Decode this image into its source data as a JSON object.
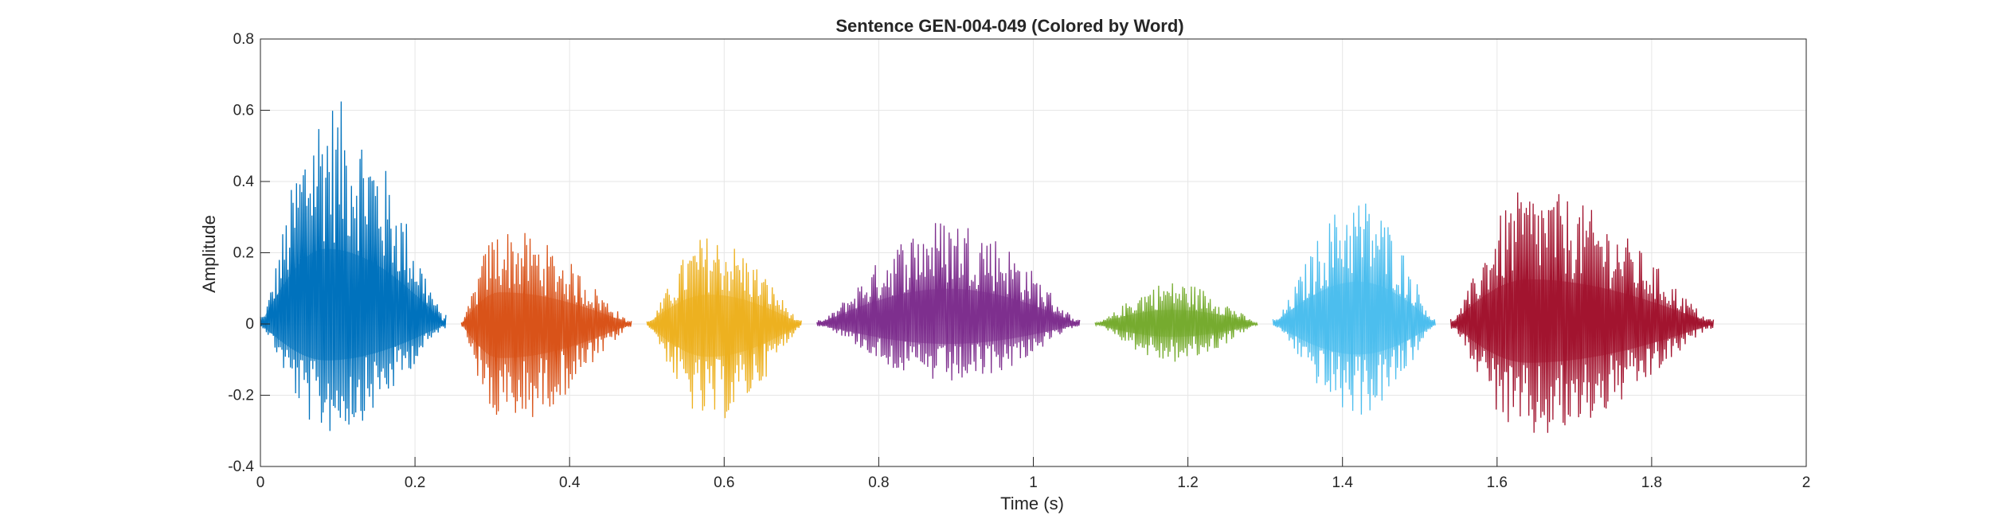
{
  "chart_data": {
    "type": "line",
    "title": "Sentence GEN-004-049 (Colored by Word)",
    "xlabel": "Time (s)",
    "ylabel": "Amplitude",
    "xlim": [
      0,
      2
    ],
    "ylim": [
      -0.4,
      0.8
    ],
    "x_ticks": [
      0,
      0.2,
      0.4,
      0.6,
      0.8,
      1,
      1.2,
      1.4,
      1.6,
      1.8,
      2
    ],
    "x_tick_labels": [
      "0",
      "0.2",
      "0.4",
      "0.6",
      "0.8",
      "1",
      "1.2",
      "1.4",
      "1.6",
      "1.8",
      "2"
    ],
    "y_ticks": [
      -0.4,
      -0.2,
      0,
      0.2,
      0.4,
      0.6,
      0.8
    ],
    "y_tick_labels": [
      "-0.4",
      "-0.2",
      "0",
      "0.2",
      "0.4",
      "0.6",
      "0.8"
    ],
    "grid": true,
    "legend": "none",
    "segments": [
      {
        "start": 0.0,
        "end": 0.24,
        "peak_time": 0.085,
        "max": 0.64,
        "min": -0.31,
        "color": "#0072BD"
      },
      {
        "start": 0.26,
        "end": 0.48,
        "peak_time": 0.31,
        "max": 0.27,
        "min": -0.29,
        "color": "#D95319"
      },
      {
        "start": 0.5,
        "end": 0.7,
        "peak_time": 0.58,
        "max": 0.25,
        "min": -0.28,
        "color": "#EDB120"
      },
      {
        "start": 0.72,
        "end": 1.06,
        "peak_time": 0.89,
        "max": 0.3,
        "min": -0.17,
        "color": "#7E2F8E"
      },
      {
        "start": 1.08,
        "end": 1.29,
        "peak_time": 1.18,
        "max": 0.12,
        "min": -0.11,
        "color": "#77AC30"
      },
      {
        "start": 1.31,
        "end": 1.52,
        "peak_time": 1.42,
        "max": 0.36,
        "min": -0.26,
        "color": "#4DBEEE"
      },
      {
        "start": 1.54,
        "end": 1.88,
        "peak_time": 1.64,
        "max": 0.38,
        "min": -0.33,
        "color": "#A2142F"
      }
    ]
  }
}
